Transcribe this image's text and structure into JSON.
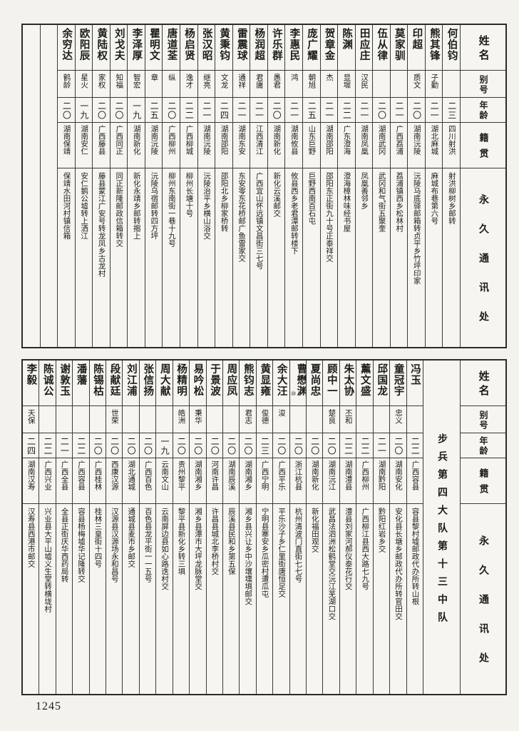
{
  "page_number": "1245",
  "colors": {
    "paper": "#f4f2ec",
    "ink": "#1c1c1c",
    "grid_line": "#3a3a3a"
  },
  "headers": {
    "name": "姓名",
    "alias": "别号",
    "age": "年龄",
    "origin": "籍贯",
    "address": "永久通讯处"
  },
  "bottom_section_label": "步兵第四大队第十三中队",
  "top_empty_columns": 2,
  "top_entries": [
    {
      "name": "何伯钧",
      "alias": "",
      "age": "二三",
      "origin": "四川射洪",
      "address": "射洪柳树乡邮转"
    },
    {
      "name": "熊其锋",
      "alias": "子勤",
      "age": "二一",
      "origin": "湖北麻城",
      "address": "麻城布巷第六号"
    },
    {
      "name": "印超",
      "alias": "质文",
      "age": "二〇",
      "origin": "湖南沅陵",
      "address": "沅陵马底驿邮箱转贞平乡竹坪印家"
    },
    {
      "name": "莫家驯",
      "alias": "",
      "age": "二一",
      "origin": "广西荔浦",
      "address": "荔浦镇西乡松林村"
    },
    {
      "name": "伍从律",
      "alias": "",
      "age": "二〇",
      "origin": "湖南武冈",
      "address": "武冈和气街五聚奎"
    },
    {
      "name": "田应庄",
      "alias": "汉民",
      "age": "二一",
      "origin": "湖南凤凰",
      "address": "凤凰善邻乡"
    },
    {
      "name": "陈渊",
      "alias": "显墀",
      "age": "二二",
      "origin": "广东澄海",
      "address": "澄海樟林味经书屋"
    },
    {
      "name": "贺章金",
      "alias": "杰",
      "age": "二一",
      "origin": "湖南邵阳",
      "address": "邵阳东正街九十号正泰祥交"
    },
    {
      "name": "庞广耀",
      "alias": "朝旭",
      "age": "二五",
      "origin": "山东巨野",
      "address": "巨野西南百石屯"
    },
    {
      "name": "李惠民",
      "alias": "鸿",
      "age": "二一",
      "origin": "湖南攸县",
      "address": "攸县西乡老君潭邮转楼下"
    },
    {
      "name": "许乐群",
      "alias": "愚君",
      "age": "二〇",
      "origin": "湖南新化",
      "address": "新化云溪邮交"
    },
    {
      "name": "杨润超",
      "alias": "君庸",
      "age": "二一",
      "origin": "江西清江",
      "address": "广西宜山怀远镇文昌街三七号"
    },
    {
      "name": "雷震球",
      "alias": "通祥",
      "age": "二一",
      "origin": "湖南东安",
      "address": "东安零东花桥邮广鱼雷家交"
    },
    {
      "name": "黄秉钧",
      "alias": "文龙",
      "age": "二四",
      "origin": "湖南邵阳",
      "address": "邵阳北乡柳家桥转"
    },
    {
      "name": "张汉昭",
      "alias": "继亮",
      "age": "二一",
      "origin": "湖南沅陵",
      "address": "沅陵治平乡横山浴交"
    },
    {
      "name": "杨启贤",
      "alias": "逸才",
      "age": "二二",
      "origin": "广西柳城",
      "address": "柳州长塘十号"
    },
    {
      "name": "唐道荃",
      "alias": "纵",
      "age": "二〇",
      "origin": "广西柳州",
      "address": "柳州东南街一巷十九号"
    },
    {
      "name": "瞿明文",
      "alias": "章",
      "age": "二五",
      "origin": "湖南沅陵",
      "address": "沅陵乌宿邮转四方坪"
    },
    {
      "name": "李泽厚",
      "alias": "智宏",
      "age": "一九",
      "origin": "湖南新化",
      "address": "新化永靖乡邮转搊上"
    },
    {
      "name": "刘戈夫",
      "alias": "知福",
      "age": "二〇",
      "origin": "广西同正",
      "address": "同正新隆邮政信箱转交"
    },
    {
      "name": "黄陆权",
      "alias": "家权",
      "age": "二〇",
      "origin": "广西藤县",
      "address": "藤县蒙江广安号转龙凤乡古龙村"
    },
    {
      "name": "欧阳辰",
      "alias": "星火",
      "age": "一九",
      "origin": "湖南安仁",
      "address": "安仁鹅公墟转上洒江"
    },
    {
      "name": "余穷达",
      "alias": "鹤龄",
      "age": "二〇",
      "origin": "湖南保靖",
      "address": "保靖水田河村镇信箱"
    }
  ],
  "bottom_entries": [
    {
      "name": "冯玉",
      "alias": "",
      "age": "二二",
      "origin": "广西容县",
      "address": "容县黎村墟邮政代办所转山根"
    },
    {
      "name": "童冠宇",
      "alias": "忠义",
      "age": "二〇",
      "origin": "湖南安化",
      "address": "安化县长塘乡邮政代办所转官田交"
    },
    {
      "name": "邱国龙",
      "alias": "",
      "age": "二一",
      "origin": "湖南黔阳",
      "address": "黔阳红岩乡交"
    },
    {
      "name": "薰文盛",
      "alias": "",
      "age": "二二",
      "origin": "广西柳州",
      "address": "广西柳江县西大路七九号"
    },
    {
      "name": "朱太协",
      "alias": "丕和",
      "age": "二二",
      "origin": "湖南澧县",
      "address": "澧县刘家河郝仪泰花行交"
    },
    {
      "name": "顾中一",
      "alias": "楚良",
      "age": "二〇",
      "origin": "湖南沅江",
      "address": "武昌法泗洲松鹤堂交沅江芜湖口交"
    },
    {
      "name": "夏尚忠",
      "alias": "",
      "age": "二〇",
      "origin": "湖南新化",
      "address": "新化福田观交"
    },
    {
      "name": "曹懋渊",
      "note": "⑩",
      "alias": "",
      "age": "二〇",
      "origin": "浙江杭县",
      "address": "杭州清波门直街七七号"
    },
    {
      "name": "余大汪",
      "alias": "浚",
      "age": "二〇",
      "origin": "广西平乐",
      "address": "平乐沙子乡仁里街唐恒足交"
    },
    {
      "name": "黄显雍",
      "alias": "俊德",
      "age": "二三",
      "origin": "广西宁明",
      "address": "宁明县寨安乡瓜密村遭瓜屯"
    },
    {
      "name": "熊钧志",
      "alias": "君志",
      "age": "二〇",
      "origin": "湖南湘乡",
      "address": "湘乡县兴让乡中沙壤壎埧邮交"
    },
    {
      "name": "周应凤",
      "alias": "",
      "age": "二〇",
      "origin": "湖南辰溪",
      "address": "辰溪县民和乡第五保"
    },
    {
      "name": "于景波",
      "alias": "",
      "age": "二〇",
      "origin": "河南许昌",
      "address": "许昌县城北李桥村交"
    },
    {
      "name": "易吟松",
      "alias": "秉华",
      "age": "二〇",
      "origin": "湖南湘乡",
      "address": "湘乡县潭市大坪龙脉堂交"
    },
    {
      "name": "杨精明",
      "alias": "皓洲",
      "age": "二〇",
      "origin": "贵州黎平",
      "address": "黎平县新化乡转三埧"
    },
    {
      "name": "周大献",
      "alias": "",
      "age": "一九",
      "origin": "云南文山",
      "address": "云南屏边县如心路迭村交"
    },
    {
      "name": "张信扬",
      "alias": "",
      "age": "二〇",
      "origin": "广西百色",
      "address": "百色县龙平街一一五号"
    },
    {
      "name": "刘江浦",
      "alias": "",
      "age": "二〇",
      "origin": "湖北通城",
      "address": "通城县麦市乡邮交"
    },
    {
      "name": "段献廷",
      "alias": "世荣",
      "age": "二〇",
      "origin": "西康汉源",
      "address": "汉源县汉源场永和昌号"
    },
    {
      "name": "陈锡枯",
      "alias": "",
      "age": "二〇",
      "origin": "广西桂林",
      "address": "桂林三皇街十四号"
    },
    {
      "name": "潘藩",
      "alias": "",
      "age": "二二",
      "origin": "广西容县",
      "address": "容县杨梅墟华记隆转交"
    },
    {
      "name": "谢敦玉",
      "alias": "",
      "age": "二一",
      "origin": "广西全县",
      "address": "全县正街庆华西药局转"
    },
    {
      "name": "陈诚公",
      "alias": "",
      "age": "二二",
      "origin": "广西兴业",
      "address": "兴业县大平山墟义生堂转横垅村"
    },
    {
      "name": "李毅",
      "alias": "天保",
      "age": "二四",
      "origin": "湖南汉寿",
      "address": "汉寿县西港市邮交"
    }
  ]
}
